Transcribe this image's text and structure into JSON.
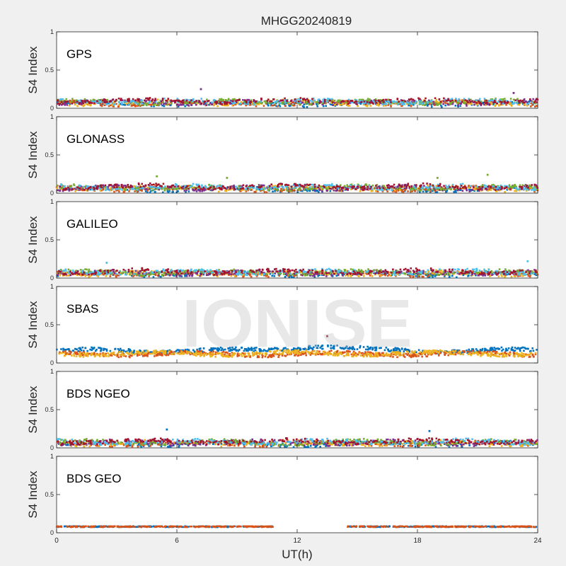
{
  "figure": {
    "title": "MHGG20240819",
    "xlabel": "UT(h)",
    "watermark": "IONISE",
    "background": "#f0f0f0"
  },
  "chart_data": {
    "type": "scatter",
    "title": "MHGG20240819",
    "xlabel": "UT(h)",
    "x_range": [
      0,
      24
    ],
    "x_ticks": [
      0,
      6,
      12,
      18,
      24
    ],
    "x_tick_labels": [
      "0",
      "6",
      "12",
      "18",
      "24"
    ],
    "y_ticks": [
      0,
      0.5,
      1
    ],
    "y_tick_labels": [
      "0",
      "0.5",
      "1"
    ],
    "grid": false,
    "series_colors": [
      "#0072bd",
      "#d95319",
      "#edb120",
      "#7e2f8e",
      "#77ac30",
      "#4dbeee",
      "#a2142f"
    ],
    "panels": [
      {
        "label": "GPS",
        "ylabel": "S4 Index",
        "ylim": [
          0,
          1
        ],
        "series_count": 7,
        "typical_s4": 0.08,
        "max_s4": 0.25,
        "peaks": [
          {
            "x": 7.2,
            "y": 0.25
          },
          {
            "x": 22.8,
            "y": 0.2
          }
        ],
        "coverage": [
          [
            0,
            24
          ]
        ]
      },
      {
        "label": "GLONASS",
        "ylabel": "S4 Index",
        "ylim": [
          0,
          1
        ],
        "series_count": 7,
        "typical_s4": 0.07,
        "max_s4": 0.25,
        "peaks": [
          {
            "x": 5,
            "y": 0.22
          },
          {
            "x": 8.5,
            "y": 0.2
          },
          {
            "x": 19,
            "y": 0.2
          },
          {
            "x": 21.5,
            "y": 0.24
          }
        ],
        "coverage": [
          [
            0,
            24
          ]
        ]
      },
      {
        "label": "GALILEO",
        "ylabel": "S4 Index",
        "ylim": [
          0,
          1
        ],
        "series_count": 7,
        "typical_s4": 0.07,
        "max_s4": 0.22,
        "peaks": [
          {
            "x": 2.5,
            "y": 0.2
          },
          {
            "x": 23.5,
            "y": 0.22
          }
        ],
        "coverage": [
          [
            0,
            24
          ]
        ]
      },
      {
        "label": "SBAS",
        "ylabel": "S4 Index",
        "ylim": [
          0,
          1
        ],
        "series_count": 3,
        "typical_s4": 0.12,
        "max_s4": 0.35,
        "peaks": [
          {
            "x": 13.5,
            "y": 0.35
          }
        ],
        "coverage": [
          [
            0,
            24
          ]
        ]
      },
      {
        "label": "BDS NGEO",
        "ylabel": "S4 Index",
        "ylim": [
          0,
          1
        ],
        "series_count": 7,
        "typical_s4": 0.07,
        "max_s4": 0.24,
        "peaks": [
          {
            "x": 5.5,
            "y": 0.24
          },
          {
            "x": 18.6,
            "y": 0.22
          }
        ],
        "coverage": [
          [
            0,
            24
          ]
        ]
      },
      {
        "label": "BDS GEO",
        "ylabel": "S4 Index",
        "ylim": [
          0,
          1
        ],
        "series_count": 2,
        "typical_s4": 0.08,
        "max_s4": 0.1,
        "peaks": [],
        "coverage": [
          [
            0,
            10.8
          ],
          [
            14.5,
            24
          ]
        ]
      }
    ]
  }
}
